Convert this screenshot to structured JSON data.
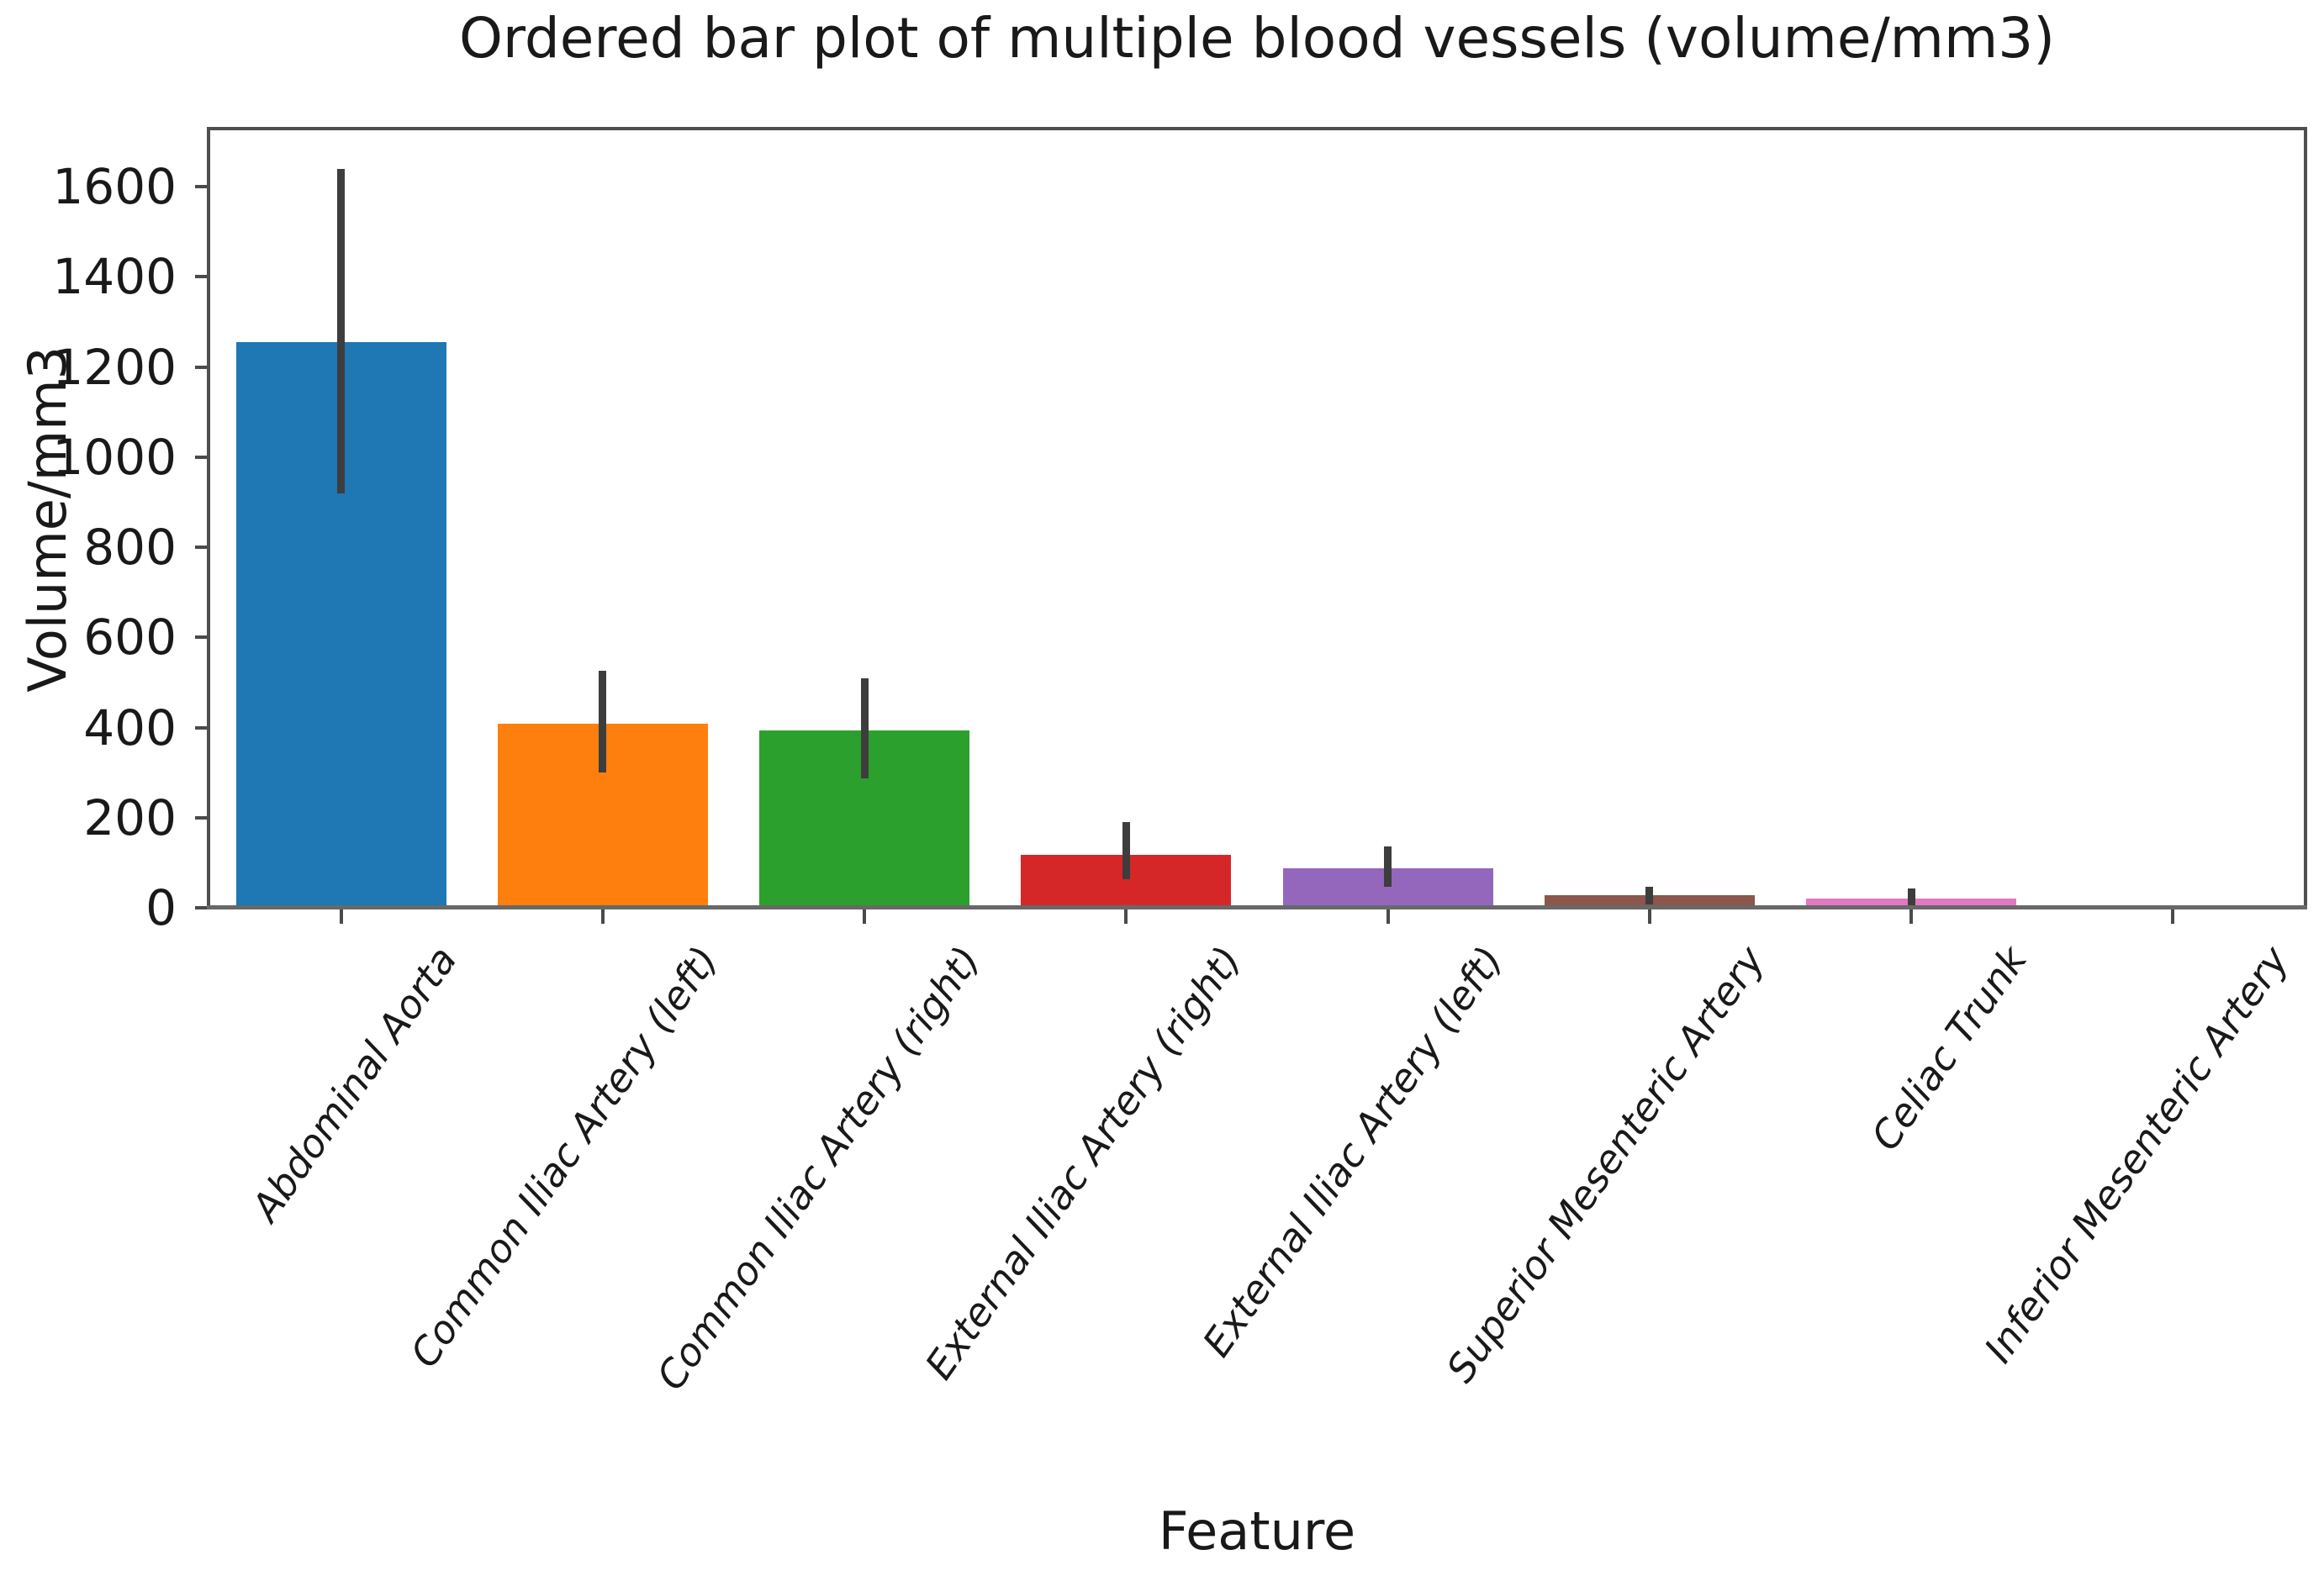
{
  "chart_data": {
    "type": "bar",
    "title": "Ordered bar plot of multiple blood vessels (volume/mm3)",
    "xlabel": "Feature",
    "ylabel": "Volume/mm3",
    "ylim": [
      0,
      1725
    ],
    "yticks": [
      0,
      200,
      400,
      600,
      800,
      1000,
      1200,
      1400,
      1600
    ],
    "grid": false,
    "legend": null,
    "categories": [
      "Abdominal Aorta",
      "Common Iliac Artery (left)",
      "Common Iliac Artery (right)",
      "External Iliac Artery (right)",
      "External Iliac Artery (left)",
      "Superior Mesenteric Artery",
      "Celiac Trunk",
      "Inferior Mesenteric Artery"
    ],
    "values": [
      1255,
      408,
      394,
      118,
      87,
      28,
      20,
      2
    ],
    "error_low": [
      920,
      300,
      288,
      64,
      47,
      8,
      2,
      0
    ],
    "error_high": [
      1640,
      525,
      510,
      190,
      136,
      47,
      43,
      4
    ],
    "bar_colors": [
      "#1f77b4",
      "#ff7f0e",
      "#2ca02c",
      "#d62728",
      "#9467bd",
      "#8c564b",
      "#e377c2",
      "#7f7f7f"
    ],
    "error_color": "#3d3d3d",
    "axis_color": "#4f4f4f"
  }
}
